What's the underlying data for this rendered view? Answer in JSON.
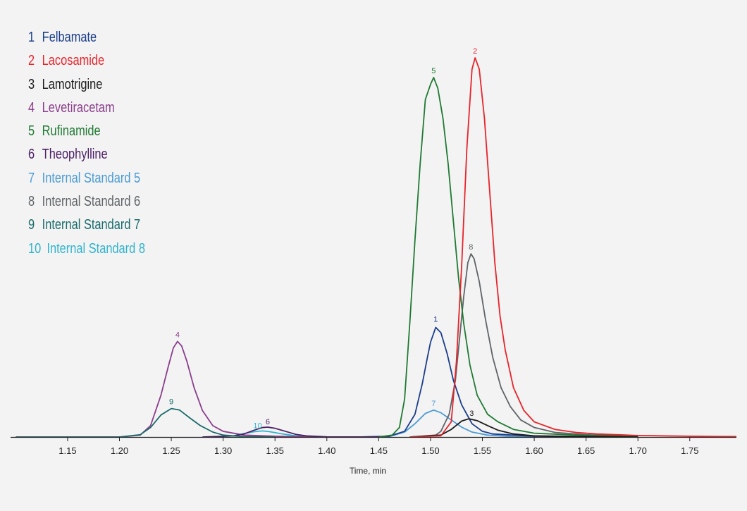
{
  "chart_data": {
    "type": "line",
    "title": "",
    "xlabel": "Time, min",
    "ylabel": "",
    "xlim": [
      1.095,
      1.795
    ],
    "ylim": [
      0,
      100
    ],
    "grid": false,
    "legend_placement": "top-left",
    "x_ticks": [
      "1.15",
      "1.20",
      "1.25",
      "1.30",
      "1.35",
      "1.40",
      "1.45",
      "1.50",
      "1.55",
      "1.60",
      "1.65",
      "1.70",
      "1.75"
    ],
    "series": [
      {
        "label": "1",
        "name": "Felbamate",
        "color": "#1a3d8a",
        "peak_time": 1.505,
        "peak_height": 28.9,
        "points": [
          [
            1.43,
            0
          ],
          [
            1.46,
            0.2
          ],
          [
            1.475,
            1.5
          ],
          [
            1.485,
            6
          ],
          [
            1.492,
            14
          ],
          [
            1.497,
            21
          ],
          [
            1.5,
            25
          ],
          [
            1.505,
            28.9
          ],
          [
            1.51,
            27.5
          ],
          [
            1.516,
            22
          ],
          [
            1.522,
            15
          ],
          [
            1.53,
            8.5
          ],
          [
            1.54,
            3.5
          ],
          [
            1.55,
            1.5
          ],
          [
            1.56,
            0.8
          ],
          [
            1.6,
            0.2
          ],
          [
            1.7,
            0
          ]
        ]
      },
      {
        "label": "2",
        "name": "Lacosamide",
        "color": "#e8232a",
        "peak_time": 1.543,
        "peak_height": 100,
        "points": [
          [
            1.48,
            0
          ],
          [
            1.51,
            0.3
          ],
          [
            1.52,
            4
          ],
          [
            1.525,
            20
          ],
          [
            1.53,
            45
          ],
          [
            1.535,
            76
          ],
          [
            1.54,
            97
          ],
          [
            1.543,
            100
          ],
          [
            1.547,
            97
          ],
          [
            1.552,
            84
          ],
          [
            1.557,
            65
          ],
          [
            1.562,
            46
          ],
          [
            1.567,
            32
          ],
          [
            1.572,
            23
          ],
          [
            1.58,
            13
          ],
          [
            1.59,
            7
          ],
          [
            1.6,
            4
          ],
          [
            1.62,
            2
          ],
          [
            1.64,
            1.2
          ],
          [
            1.66,
            0.8
          ],
          [
            1.7,
            0.4
          ],
          [
            1.75,
            0.2
          ],
          [
            1.795,
            0.1
          ]
        ]
      },
      {
        "label": "3",
        "name": "Lamotrigine",
        "color": "#1a1a1a",
        "peak_time": 1.537,
        "peak_height": 4.8,
        "points": [
          [
            1.48,
            0
          ],
          [
            1.51,
            0.5
          ],
          [
            1.52,
            2
          ],
          [
            1.53,
            4.2
          ],
          [
            1.537,
            4.8
          ],
          [
            1.545,
            4.3
          ],
          [
            1.555,
            3
          ],
          [
            1.565,
            1.8
          ],
          [
            1.58,
            0.8
          ],
          [
            1.6,
            0.3
          ],
          [
            1.65,
            0.1
          ],
          [
            1.7,
            0
          ]
        ]
      },
      {
        "label": "4",
        "name": "Levetiracetam",
        "color": "#8a3d8c",
        "peak_time": 1.256,
        "peak_height": 25.2,
        "points": [
          [
            1.1,
            0
          ],
          [
            1.2,
            0
          ],
          [
            1.22,
            0.5
          ],
          [
            1.23,
            3
          ],
          [
            1.24,
            11
          ],
          [
            1.247,
            18.5
          ],
          [
            1.252,
            23.5
          ],
          [
            1.256,
            25.2
          ],
          [
            1.26,
            24
          ],
          [
            1.265,
            20
          ],
          [
            1.272,
            13
          ],
          [
            1.28,
            7
          ],
          [
            1.29,
            3
          ],
          [
            1.3,
            1.5
          ],
          [
            1.32,
            0.5
          ],
          [
            1.35,
            0.2
          ],
          [
            1.4,
            0
          ]
        ]
      },
      {
        "label": "5",
        "name": "Rufinamide",
        "color": "#1f7a33",
        "peak_time": 1.503,
        "peak_height": 94.8,
        "points": [
          [
            1.45,
            0
          ],
          [
            1.463,
            0.5
          ],
          [
            1.47,
            2.5
          ],
          [
            1.475,
            10
          ],
          [
            1.48,
            30
          ],
          [
            1.485,
            52
          ],
          [
            1.49,
            72
          ],
          [
            1.495,
            89
          ],
          [
            1.5,
            93
          ],
          [
            1.503,
            94.8
          ],
          [
            1.507,
            92
          ],
          [
            1.512,
            84
          ],
          [
            1.517,
            72
          ],
          [
            1.522,
            57
          ],
          [
            1.527,
            42
          ],
          [
            1.532,
            30
          ],
          [
            1.538,
            19
          ],
          [
            1.545,
            11
          ],
          [
            1.555,
            6
          ],
          [
            1.565,
            4
          ],
          [
            1.58,
            2
          ],
          [
            1.6,
            1
          ],
          [
            1.65,
            0.4
          ],
          [
            1.7,
            0.2
          ]
        ]
      },
      {
        "label": "6",
        "name": "Theophylline",
        "color": "#4b1e66",
        "peak_time": 1.343,
        "peak_height": 2.6,
        "points": [
          [
            1.28,
            0
          ],
          [
            1.31,
            0.3
          ],
          [
            1.32,
            0.8
          ],
          [
            1.33,
            1.8
          ],
          [
            1.338,
            2.5
          ],
          [
            1.343,
            2.6
          ],
          [
            1.35,
            2.3
          ],
          [
            1.36,
            1.5
          ],
          [
            1.37,
            0.7
          ],
          [
            1.38,
            0.3
          ],
          [
            1.4,
            0.05
          ],
          [
            1.45,
            0
          ]
        ]
      },
      {
        "label": "7",
        "name": "Internal Standard 5",
        "color": "#4a9bd4",
        "peak_time": 1.503,
        "peak_height": 7.1,
        "points": [
          [
            1.43,
            0
          ],
          [
            1.46,
            0.1
          ],
          [
            1.475,
            1.3
          ],
          [
            1.485,
            3.5
          ],
          [
            1.495,
            6.2
          ],
          [
            1.503,
            7.1
          ],
          [
            1.51,
            6.4
          ],
          [
            1.52,
            4.5
          ],
          [
            1.53,
            2.6
          ],
          [
            1.54,
            1.3
          ],
          [
            1.555,
            0.5
          ],
          [
            1.58,
            0.1
          ],
          [
            1.6,
            0
          ]
        ]
      },
      {
        "label": "8",
        "name": "Internal Standard 6",
        "color": "#5f6468",
        "peak_time": 1.539,
        "peak_height": 48.3,
        "points": [
          [
            1.48,
            0
          ],
          [
            1.505,
            0.5
          ],
          [
            1.51,
            1.5
          ],
          [
            1.518,
            6
          ],
          [
            1.524,
            15
          ],
          [
            1.528,
            26
          ],
          [
            1.532,
            37
          ],
          [
            1.536,
            46
          ],
          [
            1.539,
            48.3
          ],
          [
            1.542,
            47
          ],
          [
            1.547,
            41
          ],
          [
            1.553,
            31
          ],
          [
            1.56,
            21
          ],
          [
            1.568,
            13
          ],
          [
            1.577,
            8
          ],
          [
            1.587,
            4.5
          ],
          [
            1.6,
            2.5
          ],
          [
            1.62,
            1.2
          ],
          [
            1.65,
            0.6
          ],
          [
            1.7,
            0.2
          ]
        ]
      },
      {
        "label": "9",
        "name": "Internal Standard 7",
        "color": "#1a6b6b",
        "peak_time": 1.25,
        "peak_height": 7.5,
        "points": [
          [
            1.1,
            0
          ],
          [
            1.2,
            0
          ],
          [
            1.22,
            0.6
          ],
          [
            1.23,
            2.5
          ],
          [
            1.24,
            5.8
          ],
          [
            1.25,
            7.5
          ],
          [
            1.258,
            7.1
          ],
          [
            1.268,
            5
          ],
          [
            1.278,
            3
          ],
          [
            1.29,
            1.3
          ],
          [
            1.3,
            0.5
          ],
          [
            1.32,
            0.1
          ],
          [
            1.35,
            0
          ]
        ]
      },
      {
        "label": "10",
        "name": "Internal Standard 8",
        "color": "#2fb3cf",
        "peak_time": 1.338,
        "peak_height": 1.6,
        "points": [
          [
            1.29,
            0
          ],
          [
            1.31,
            0.3
          ],
          [
            1.32,
            0.9
          ],
          [
            1.33,
            1.4
          ],
          [
            1.338,
            1.6
          ],
          [
            1.345,
            1.4
          ],
          [
            1.355,
            0.9
          ],
          [
            1.37,
            0.3
          ],
          [
            1.39,
            0.05
          ],
          [
            1.41,
            0
          ]
        ]
      }
    ]
  }
}
